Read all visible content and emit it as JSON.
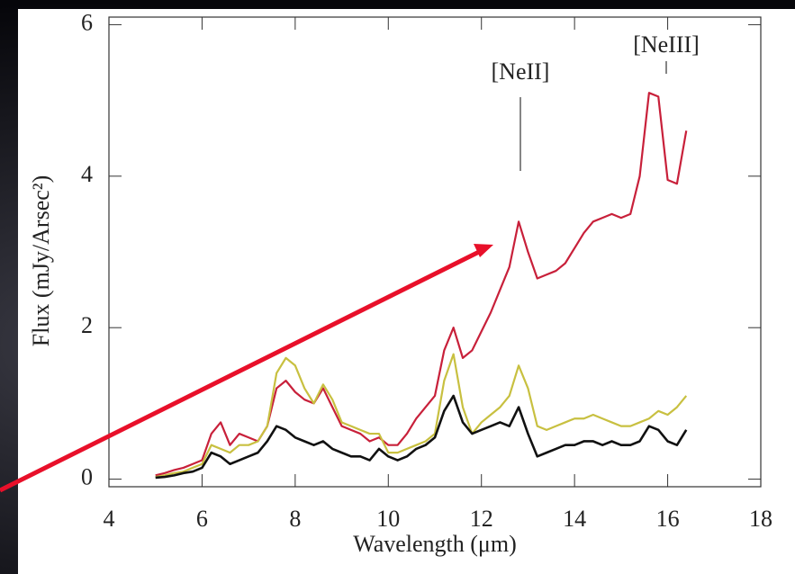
{
  "chart_data": {
    "type": "line",
    "xlabel": "Wavelength (μm)",
    "ylabel": "Flux (mJy/Arsec²)",
    "annotations": [
      "[NeII]",
      "[NeIII]"
    ],
    "xlim": [
      4,
      18
    ],
    "xticks": [
      4,
      6,
      8,
      10,
      12,
      14,
      16,
      18
    ],
    "ylim": [
      -0.1,
      6.1
    ],
    "yticks": [
      0,
      2,
      4,
      6
    ],
    "x": [
      5.0,
      5.2,
      5.4,
      5.6,
      5.8,
      6.0,
      6.2,
      6.4,
      6.6,
      6.8,
      7.0,
      7.2,
      7.4,
      7.6,
      7.8,
      8.0,
      8.2,
      8.4,
      8.6,
      8.8,
      9.0,
      9.2,
      9.4,
      9.6,
      9.8,
      10.0,
      10.2,
      10.4,
      10.6,
      10.8,
      11.0,
      11.2,
      11.4,
      11.6,
      11.8,
      12.0,
      12.2,
      12.4,
      12.6,
      12.8,
      13.0,
      13.2,
      13.4,
      13.6,
      13.8,
      14.0,
      14.2,
      14.4,
      14.6,
      14.8,
      15.0,
      15.2,
      15.4,
      15.6,
      15.8,
      16.0,
      16.2,
      16.4
    ],
    "series": [
      {
        "color": "#c8203a",
        "values": [
          0.05,
          0.08,
          0.12,
          0.15,
          0.2,
          0.25,
          0.6,
          0.75,
          0.45,
          0.6,
          0.55,
          0.5,
          0.7,
          1.2,
          1.3,
          1.15,
          1.05,
          1.0,
          1.2,
          0.95,
          0.7,
          0.65,
          0.6,
          0.5,
          0.55,
          0.45,
          0.45,
          0.6,
          0.8,
          0.95,
          1.1,
          1.7,
          2.0,
          1.6,
          1.7,
          1.95,
          2.2,
          2.5,
          2.8,
          3.4,
          3.0,
          2.65,
          2.7,
          2.75,
          2.85,
          3.05,
          3.25,
          3.4,
          3.45,
          3.5,
          3.45,
          3.5,
          4.0,
          5.1,
          5.05,
          3.95,
          3.9,
          4.6
        ]
      },
      {
        "color": "#c8c040",
        "values": [
          0.03,
          0.05,
          0.08,
          0.1,
          0.15,
          0.2,
          0.45,
          0.4,
          0.35,
          0.45,
          0.45,
          0.5,
          0.7,
          1.4,
          1.6,
          1.5,
          1.2,
          1.0,
          1.25,
          1.05,
          0.75,
          0.7,
          0.65,
          0.6,
          0.6,
          0.35,
          0.35,
          0.4,
          0.45,
          0.5,
          0.6,
          1.3,
          1.65,
          0.95,
          0.6,
          0.75,
          0.85,
          0.95,
          1.1,
          1.5,
          1.2,
          0.7,
          0.65,
          0.7,
          0.75,
          0.8,
          0.8,
          0.85,
          0.8,
          0.75,
          0.7,
          0.7,
          0.75,
          0.8,
          0.9,
          0.85,
          0.95,
          1.1
        ]
      },
      {
        "color": "#111111",
        "values": [
          0.02,
          0.03,
          0.05,
          0.08,
          0.1,
          0.15,
          0.35,
          0.3,
          0.2,
          0.25,
          0.3,
          0.35,
          0.5,
          0.7,
          0.65,
          0.55,
          0.5,
          0.45,
          0.5,
          0.4,
          0.35,
          0.3,
          0.3,
          0.25,
          0.4,
          0.3,
          0.25,
          0.3,
          0.4,
          0.45,
          0.55,
          0.9,
          1.1,
          0.75,
          0.6,
          0.65,
          0.7,
          0.75,
          0.7,
          0.95,
          0.6,
          0.3,
          0.35,
          0.4,
          0.45,
          0.45,
          0.5,
          0.5,
          0.45,
          0.5,
          0.45,
          0.45,
          0.5,
          0.7,
          0.65,
          0.5,
          0.45,
          0.65
        ]
      }
    ]
  }
}
